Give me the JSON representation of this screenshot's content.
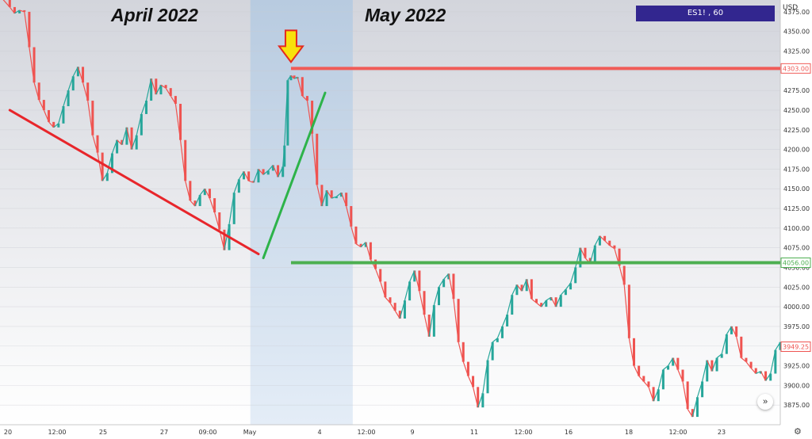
{
  "header": {
    "left_month": "April 2022",
    "right_month": "May 2022",
    "symbol_badge": "ES1! , 60",
    "currency": "USD"
  },
  "controls": {
    "scroll_icon": "double-chevron-right-icon",
    "settings_icon": "gear-icon",
    "scroll_glyph": "»",
    "settings_glyph": "⚙"
  },
  "colors": {
    "up": "#26a69a",
    "down": "#ef5350",
    "resistance": "#f05b57",
    "support": "#4caf50",
    "trend_down": "#e8262b",
    "trend_up": "#2db34a",
    "arrow": "#f8e10c",
    "highlight": "#c9daec"
  },
  "chart_data": {
    "type": "line",
    "title": "",
    "xlabel": "",
    "ylabel": "",
    "symbol": "ES1!",
    "interval": "60",
    "ylim": [
      3850,
      4390
    ],
    "y_ticks": [
      4375,
      4350,
      4325,
      4300,
      4275,
      4250,
      4225,
      4200,
      4175,
      4150,
      4125,
      4100,
      4075,
      4050,
      4025,
      4000,
      3975,
      3950,
      3925,
      3900,
      3875
    ],
    "y_tick_labels": [
      "4375.00",
      "4350.00",
      "4325.00",
      "4300.00",
      "4275.00",
      "4250.00",
      "4225.00",
      "4200.00",
      "4175.00",
      "4150.00",
      "4125.00",
      "4100.00",
      "4075.00",
      "4050.00",
      "4025.00",
      "4000.00",
      "3975.00",
      "3950.00",
      "3925.00",
      "3900.00",
      "3875.00"
    ],
    "x_tick_labels": [
      "20",
      "12:00",
      "25",
      "27",
      "09:00",
      "May",
      "4",
      "12:00",
      "9",
      "11",
      "12:00",
      "16",
      "18",
      "12:00",
      "23"
    ],
    "price_path": [
      [
        0,
        4395
      ],
      [
        0.6,
        4381
      ],
      [
        0.9,
        4373
      ],
      [
        1.2,
        4377
      ],
      [
        1.5,
        4375
      ],
      [
        1.8,
        4330
      ],
      [
        2.1,
        4285
      ],
      [
        2.4,
        4263
      ],
      [
        2.7,
        4250
      ],
      [
        3.0,
        4235
      ],
      [
        3.3,
        4228
      ],
      [
        3.6,
        4233
      ],
      [
        3.9,
        4255
      ],
      [
        4.2,
        4275
      ],
      [
        4.5,
        4293
      ],
      [
        4.8,
        4305
      ],
      [
        5.1,
        4285
      ],
      [
        5.4,
        4262
      ],
      [
        5.7,
        4218
      ],
      [
        6.0,
        4196
      ],
      [
        6.3,
        4160
      ],
      [
        6.6,
        4170
      ],
      [
        6.9,
        4195
      ],
      [
        7.2,
        4212
      ],
      [
        7.5,
        4206
      ],
      [
        7.8,
        4228
      ],
      [
        8.1,
        4200
      ],
      [
        8.4,
        4218
      ],
      [
        8.7,
        4245
      ],
      [
        9.0,
        4262
      ],
      [
        9.3,
        4290
      ],
      [
        9.6,
        4270
      ],
      [
        9.9,
        4282
      ],
      [
        10.2,
        4278
      ],
      [
        10.5,
        4268
      ],
      [
        10.8,
        4258
      ],
      [
        11.1,
        4212
      ],
      [
        11.4,
        4160
      ],
      [
        11.7,
        4135
      ],
      [
        12.0,
        4128
      ],
      [
        12.3,
        4142
      ],
      [
        12.6,
        4150
      ],
      [
        12.9,
        4138
      ],
      [
        13.2,
        4120
      ],
      [
        13.5,
        4098
      ],
      [
        13.8,
        4072
      ],
      [
        14.1,
        4105
      ],
      [
        14.4,
        4145
      ],
      [
        14.7,
        4162
      ],
      [
        15.0,
        4172
      ],
      [
        15.3,
        4160
      ],
      [
        15.6,
        4158
      ],
      [
        15.9,
        4175
      ],
      [
        16.2,
        4168
      ],
      [
        16.5,
        4173
      ],
      [
        16.8,
        4180
      ],
      [
        17.1,
        4165
      ],
      [
        17.4,
        4178
      ],
      [
        17.5,
        4205
      ],
      [
        17.7,
        4288
      ],
      [
        17.9,
        4294
      ],
      [
        18.1,
        4290
      ],
      [
        18.3,
        4292
      ],
      [
        18.6,
        4268
      ],
      [
        18.9,
        4262
      ],
      [
        19.2,
        4220
      ],
      [
        19.5,
        4155
      ],
      [
        19.8,
        4128
      ],
      [
        20.1,
        4148
      ],
      [
        20.4,
        4138
      ],
      [
        20.7,
        4140
      ],
      [
        21.0,
        4145
      ],
      [
        21.3,
        4128
      ],
      [
        21.6,
        4102
      ],
      [
        21.9,
        4080
      ],
      [
        22.2,
        4076
      ],
      [
        22.5,
        4082
      ],
      [
        22.8,
        4060
      ],
      [
        23.1,
        4048
      ],
      [
        23.4,
        4032
      ],
      [
        23.7,
        4012
      ],
      [
        24.0,
        4005
      ],
      [
        24.3,
        3995
      ],
      [
        24.6,
        3985
      ],
      [
        24.9,
        4008
      ],
      [
        25.2,
        4032
      ],
      [
        25.5,
        4046
      ],
      [
        25.8,
        4020
      ],
      [
        26.1,
        3990
      ],
      [
        26.4,
        3962
      ],
      [
        26.7,
        4002
      ],
      [
        27.0,
        4025
      ],
      [
        27.3,
        4035
      ],
      [
        27.6,
        4042
      ],
      [
        27.9,
        4010
      ],
      [
        28.2,
        3955
      ],
      [
        28.5,
        3930
      ],
      [
        28.8,
        3912
      ],
      [
        29.1,
        3898
      ],
      [
        29.4,
        3872
      ],
      [
        29.7,
        3890
      ],
      [
        30.0,
        3932
      ],
      [
        30.3,
        3955
      ],
      [
        30.6,
        3960
      ],
      [
        30.9,
        3975
      ],
      [
        31.2,
        3990
      ],
      [
        31.5,
        4015
      ],
      [
        31.8,
        4028
      ],
      [
        32.1,
        4020
      ],
      [
        32.4,
        4035
      ],
      [
        32.7,
        4010
      ],
      [
        33.0,
        4005
      ],
      [
        33.3,
        4000
      ],
      [
        33.6,
        4008
      ],
      [
        33.9,
        4012
      ],
      [
        34.2,
        4000
      ],
      [
        34.5,
        4015
      ],
      [
        34.8,
        4022
      ],
      [
        35.1,
        4030
      ],
      [
        35.4,
        4050
      ],
      [
        35.7,
        4075
      ],
      [
        36.0,
        4062
      ],
      [
        36.3,
        4055
      ],
      [
        36.6,
        4078
      ],
      [
        36.9,
        4090
      ],
      [
        37.2,
        4084
      ],
      [
        37.5,
        4078
      ],
      [
        37.8,
        4074
      ],
      [
        38.1,
        4052
      ],
      [
        38.4,
        4028
      ],
      [
        38.7,
        3960
      ],
      [
        39.0,
        3925
      ],
      [
        39.3,
        3912
      ],
      [
        39.6,
        3905
      ],
      [
        39.9,
        3898
      ],
      [
        40.2,
        3880
      ],
      [
        40.5,
        3895
      ],
      [
        40.8,
        3920
      ],
      [
        41.1,
        3925
      ],
      [
        41.4,
        3935
      ],
      [
        41.7,
        3920
      ],
      [
        42.0,
        3905
      ],
      [
        42.3,
        3870
      ],
      [
        42.6,
        3860
      ],
      [
        42.9,
        3885
      ],
      [
        43.2,
        3905
      ],
      [
        43.5,
        3932
      ],
      [
        43.8,
        3918
      ],
      [
        44.1,
        3935
      ],
      [
        44.4,
        3940
      ],
      [
        44.7,
        3965
      ],
      [
        45.0,
        3975
      ],
      [
        45.3,
        3962
      ],
      [
        45.6,
        3935
      ],
      [
        45.9,
        3930
      ],
      [
        46.2,
        3922
      ],
      [
        46.5,
        3915
      ],
      [
        46.8,
        3918
      ],
      [
        47.1,
        3906
      ],
      [
        47.4,
        3915
      ],
      [
        47.7,
        3945
      ],
      [
        48.0,
        3955
      ]
    ],
    "series": [
      {
        "name": "",
        "type": "trendline",
        "points": [
          [
            0.6,
            4250
          ],
          [
            15.9,
            4067
          ]
        ]
      },
      {
        "name": "",
        "type": "trendline",
        "points": [
          [
            16.2,
            4062
          ],
          [
            20.0,
            4272
          ]
        ]
      }
    ],
    "reference_levels": [
      {
        "value": 4303.0,
        "label": "4303.00",
        "role": "resistance"
      },
      {
        "value": 4056.0,
        "label": "4056.00",
        "role": "support"
      }
    ],
    "last_price": {
      "value": 3949.25,
      "label": "3949.25"
    },
    "highlighted_range": {
      "from": 15.4,
      "to": 21.7
    },
    "x_range": [
      0,
      48
    ],
    "grid": true,
    "annotations": [
      "April 2022",
      "May 2022"
    ]
  }
}
